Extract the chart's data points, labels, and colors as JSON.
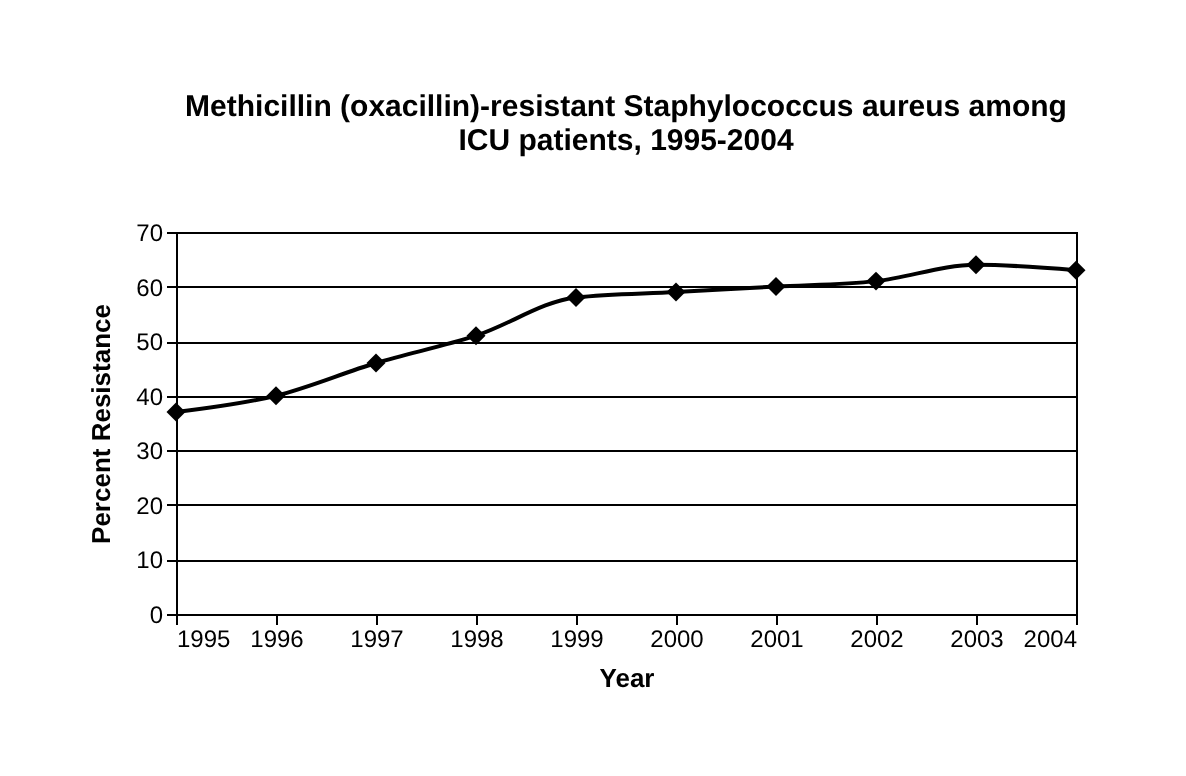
{
  "chart_data": {
    "type": "line",
    "title": "Methicillin (oxacillin)-resistant Staphylococcus aureus among ICU patients, 1995-2004",
    "xlabel": "Year",
    "ylabel": "Percent Resistance",
    "categories": [
      "1995",
      "1996",
      "1997",
      "1998",
      "1999",
      "2000",
      "2001",
      "2002",
      "2003",
      "2004"
    ],
    "series": [
      {
        "color": "#000000",
        "values": [
          37,
          40,
          46,
          51,
          58,
          59,
          60,
          61,
          64,
          63
        ]
      }
    ],
    "ylim": [
      0,
      70
    ],
    "yticks": [
      0,
      10,
      20,
      30,
      40,
      50,
      60,
      70
    ],
    "grid": "y",
    "marker": "diamond",
    "line_style": "solid"
  }
}
